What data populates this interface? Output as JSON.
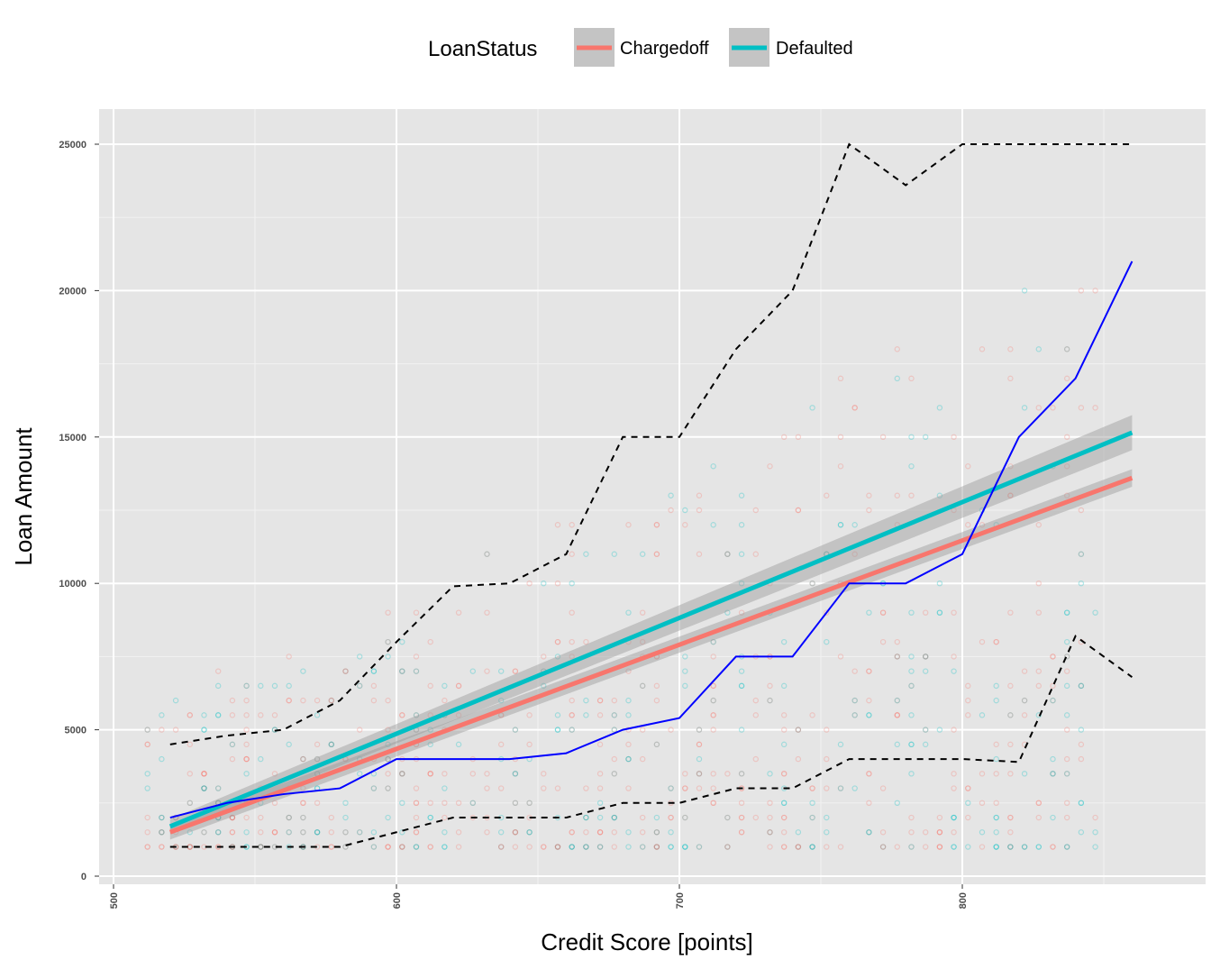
{
  "chart_data": {
    "type": "scatter",
    "xlabel": "Credit Score [points]",
    "ylabel": "Loan Amount",
    "xlim": [
      500,
      880
    ],
    "ylim": [
      0,
      26000
    ],
    "x_ticks": [
      500,
      600,
      700,
      800
    ],
    "y_ticks": [
      0,
      5000,
      10000,
      15000,
      20000,
      25000
    ],
    "grid": true,
    "legend": {
      "title": "LoanStatus",
      "placement": "top",
      "entries": [
        {
          "name": "Chargedoff",
          "color": "#F8766D"
        },
        {
          "name": "Defaulted",
          "color": "#00BFC4"
        }
      ]
    },
    "scatter_alpha": 0.3,
    "series": [
      {
        "name": "Chargedoff",
        "kind": "linear-fit",
        "color": "#F8766D",
        "x": [
          520,
          860
        ],
        "y": [
          1500,
          13600
        ],
        "ci_halfwidth": [
          250,
          300
        ]
      },
      {
        "name": "Defaulted",
        "kind": "linear-fit",
        "color": "#00BFC4",
        "x": [
          520,
          860
        ],
        "y": [
          1700,
          15150
        ],
        "ci_halfwidth": [
          250,
          600
        ]
      },
      {
        "kind": "median-line",
        "color": "#0000FF",
        "x": [
          520,
          540,
          560,
          580,
          600,
          620,
          640,
          660,
          680,
          700,
          720,
          740,
          760,
          780,
          800,
          820,
          840,
          860
        ],
        "y": [
          2000,
          2500,
          2800,
          3000,
          4000,
          4000,
          4000,
          4200,
          5000,
          5400,
          7500,
          7500,
          10000,
          10000,
          11000,
          15000,
          17000,
          21000
        ]
      },
      {
        "kind": "upper-quantile-dashed",
        "color": "#000000",
        "x": [
          520,
          540,
          560,
          580,
          600,
          620,
          640,
          660,
          680,
          700,
          720,
          740,
          760,
          780,
          800,
          820,
          840,
          860
        ],
        "y": [
          4500,
          4800,
          5000,
          6000,
          8000,
          9900,
          10000,
          11000,
          15000,
          15000,
          18000,
          20000,
          25000,
          23600,
          25000,
          25000,
          25000,
          25000
        ]
      },
      {
        "kind": "lower-quantile-dashed",
        "color": "#000000",
        "x": [
          520,
          540,
          560,
          580,
          600,
          620,
          640,
          660,
          680,
          700,
          720,
          740,
          760,
          780,
          800,
          820,
          840,
          860
        ],
        "y": [
          1000,
          1000,
          1000,
          1000,
          1500,
          2000,
          2000,
          2000,
          2500,
          2500,
          3000,
          3000,
          4000,
          4000,
          4000,
          3900,
          8200,
          6800
        ]
      }
    ]
  }
}
